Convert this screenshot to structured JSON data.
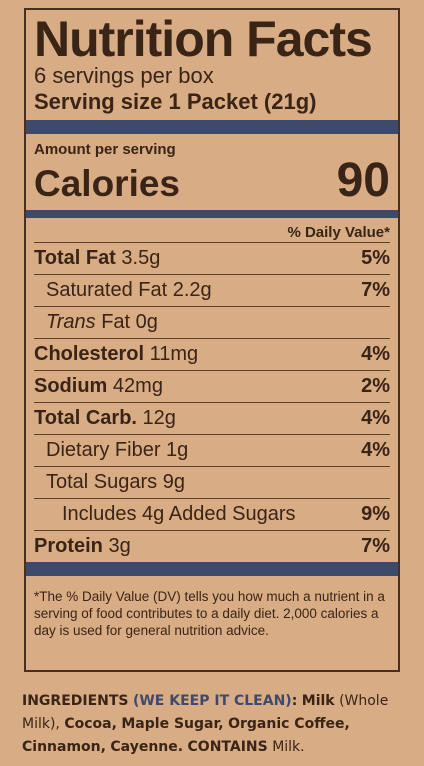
{
  "title": "Nutrition Facts",
  "servings": "6 servings per box",
  "serving_size": "Serving size 1 Packet (21g)",
  "amount_per_serving": "Amount per serving",
  "calories_label": "Calories",
  "calories_value": "90",
  "dv_header": "% Daily Value*",
  "rows": [
    {
      "name": "Total Fat",
      "amount": "3.5g",
      "pct": "5%"
    },
    {
      "name": "Saturated Fat",
      "amount": "2.2g",
      "pct": "7%"
    },
    {
      "name_italic": "Trans",
      "name": "Fat",
      "amount": "0g",
      "pct": ""
    },
    {
      "name": "Cholesterol",
      "amount": "11mg",
      "pct": "4%"
    },
    {
      "name": "Sodium",
      "amount": "42mg",
      "pct": "2%"
    },
    {
      "name": "Total Carb.",
      "amount": "12g",
      "pct": "4%"
    },
    {
      "name": "Dietary Fiber",
      "amount": "1g",
      "pct": "4%"
    },
    {
      "name": "Total Sugars",
      "amount": "9g",
      "pct": ""
    },
    {
      "name": "Includes 4g Added Sugars",
      "amount": "",
      "pct": "9%"
    },
    {
      "name": "Protein",
      "amount": "3g",
      "pct": "7%"
    }
  ],
  "footnote": "*The % Daily Value (DV) tells you how much a nutrient in a serving of food contributes to a daily diet. 2,000 calories a day is used for general nutrition advice.",
  "ingredients": {
    "label": "INGREDIENTS",
    "tagline": "(WE KEEP IT CLEAN)",
    "colon": ":",
    "milk": "Milk",
    "milk_note": "(Whole Milk),",
    "cocoa": "Cocoa,",
    "maple": "Maple Sugar,",
    "coffee": "Organic Coffee,",
    "cinnamon": "Cinnamon,",
    "cayenne": "Cayenne.",
    "contains_label": "CONTAINS",
    "contains_value": "Milk."
  }
}
